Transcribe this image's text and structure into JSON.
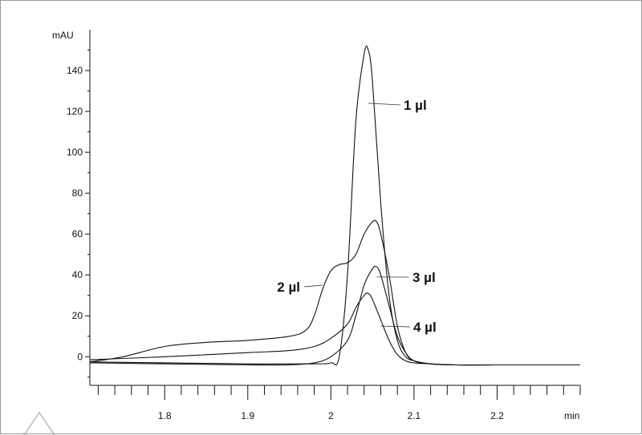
{
  "chart_data": {
    "type": "line",
    "title": "",
    "xlabel": "min",
    "ylabel": "mAU",
    "xlim": [
      1.71,
      2.3
    ],
    "ylim": [
      -14,
      160
    ],
    "x_ticks": [
      1.8,
      1.9,
      2,
      2.1,
      2.2
    ],
    "x_tick_labels": [
      "1.8",
      "1.9",
      "2",
      "2.1",
      "2.2"
    ],
    "y_ticks": [
      0,
      20,
      40,
      60,
      80,
      100,
      120,
      140
    ],
    "y_tick_labels": [
      "0",
      "20",
      "40",
      "60",
      "80",
      "100",
      "120",
      "140"
    ],
    "grid": false,
    "legend": "none",
    "series": [
      {
        "name": "1 µl",
        "x": [
          1.71,
          1.8,
          1.9,
          1.98,
          2.0,
          2.01,
          2.02,
          2.03,
          2.04,
          2.045,
          2.05,
          2.06,
          2.07,
          2.08,
          2.09,
          2.1,
          2.12,
          2.15,
          2.2,
          2.3
        ],
        "y": [
          -2.5,
          -3,
          -3.5,
          -3.5,
          -3,
          0,
          40,
          115,
          148,
          150,
          135,
          75,
          30,
          8,
          0,
          -2,
          -3.5,
          -4,
          -4,
          -4
        ]
      },
      {
        "name": "2 µl",
        "x": [
          1.71,
          1.75,
          1.8,
          1.85,
          1.9,
          1.95,
          1.97,
          1.98,
          1.99,
          2.0,
          2.01,
          2.02,
          2.03,
          2.04,
          2.05,
          2.055,
          2.06,
          2.07,
          2.08,
          2.09,
          2.1,
          2.12,
          2.15,
          2.2,
          2.3
        ],
        "y": [
          -2.5,
          0,
          5,
          7,
          8,
          10,
          13,
          20,
          33,
          42,
          45,
          46,
          50,
          60,
          66,
          66,
          60,
          40,
          15,
          2,
          -2,
          -3.5,
          -4,
          -4,
          -4
        ]
      },
      {
        "name": "3 µl",
        "x": [
          1.71,
          1.8,
          1.9,
          1.95,
          1.98,
          2.0,
          2.02,
          2.03,
          2.04,
          2.05,
          2.055,
          2.06,
          2.07,
          2.08,
          2.09,
          2.1,
          2.12,
          2.15,
          2.2,
          2.3
        ],
        "y": [
          -3,
          -3.5,
          -4,
          -4,
          -3,
          0,
          8,
          20,
          35,
          43,
          44,
          40,
          25,
          10,
          2,
          -2,
          -3.5,
          -4,
          -4,
          -4
        ]
      },
      {
        "name": "4 µl",
        "x": [
          1.71,
          1.8,
          1.9,
          1.95,
          1.98,
          2.0,
          2.02,
          2.03,
          2.04,
          2.045,
          2.05,
          2.06,
          2.07,
          2.08,
          2.09,
          2.1,
          2.12,
          2.15,
          2.2,
          2.3
        ],
        "y": [
          -1.5,
          0,
          2,
          3,
          5,
          9,
          16,
          24,
          30,
          31,
          28,
          18,
          8,
          1,
          -2,
          -3,
          -3.5,
          -4,
          -4,
          -4
        ]
      }
    ],
    "annotations": [
      {
        "text": "1 µl",
        "series": 0,
        "at_x": 2.045,
        "at_y": 124
      },
      {
        "text": "2 µl",
        "series": 1,
        "at_x": 1.99,
        "at_y": 35
      },
      {
        "text": "3 µl",
        "series": 2,
        "at_x": 2.055,
        "at_y": 39
      },
      {
        "text": "4 µl",
        "series": 3,
        "at_x": 2.06,
        "at_y": 15
      }
    ]
  }
}
